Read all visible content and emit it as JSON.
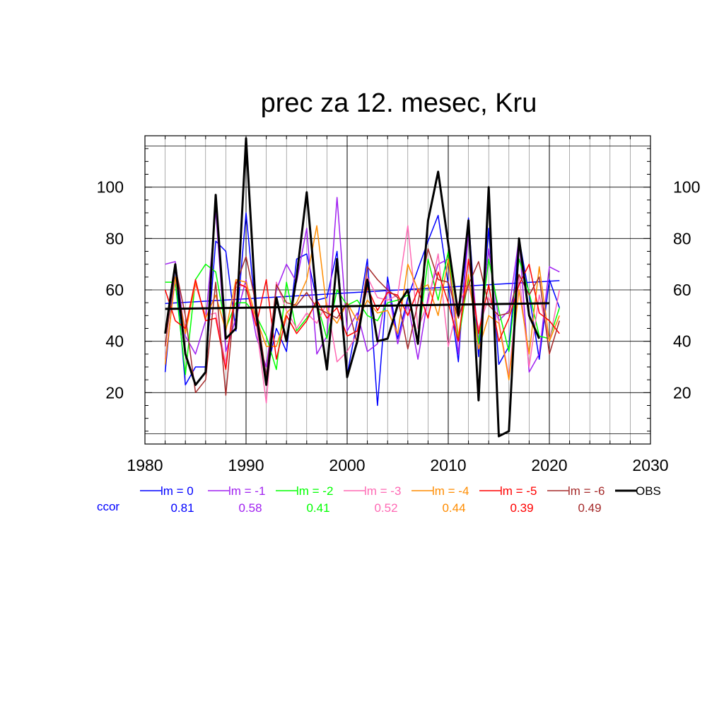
{
  "chart_data": {
    "type": "line",
    "title": "prec za 12. mesec, Kru",
    "xlabel": "",
    "ylabel": "",
    "xlim": [
      1980,
      2030
    ],
    "ylim": [
      0,
      120
    ],
    "xticks": [
      1980,
      1990,
      2000,
      2010,
      2020,
      2030
    ],
    "yticks": [
      20,
      40,
      60,
      80,
      100
    ],
    "grid": true,
    "legend_position": "bottom",
    "ccor_label": "ccor",
    "series": [
      {
        "name": "lm = 0",
        "color": "#0000ff",
        "ccor": "0.81",
        "line_width": 1.5,
        "x": [
          1982,
          1983,
          1984,
          1985,
          1986,
          1987,
          1988,
          1989,
          1990,
          1991,
          1992,
          1993,
          1994,
          1995,
          1996,
          1997,
          1998,
          1999,
          2000,
          2001,
          2002,
          2003,
          2004,
          2005,
          2006,
          2007,
          2008,
          2009,
          2010,
          2011,
          2012,
          2013,
          2014,
          2015,
          2016,
          2017,
          2018,
          2019,
          2020,
          2021
        ],
        "y": [
          28,
          69,
          23,
          30,
          30,
          79,
          75,
          44,
          90,
          49,
          27,
          45,
          36,
          72,
          74,
          56,
          57,
          75,
          27,
          48,
          72,
          15,
          65,
          41,
          57,
          68,
          79,
          89,
          62,
          32,
          88,
          34,
          84,
          31,
          38,
          80,
          58,
          33,
          64,
          53
        ],
        "trend": [
          1982,
          54.7,
          2021,
          63.6
        ]
      },
      {
        "name": "lm = -1",
        "color": "#a020f0",
        "ccor": "0.58",
        "line_width": 1.5,
        "x": [
          1982,
          1983,
          1984,
          1985,
          1986,
          1987,
          1988,
          1989,
          1990,
          1991,
          1992,
          1993,
          1994,
          1995,
          1996,
          1997,
          1998,
          1999,
          2000,
          2001,
          2002,
          2003,
          2004,
          2005,
          2006,
          2007,
          2008,
          2009,
          2010,
          2011,
          2012,
          2013,
          2014,
          2015,
          2016,
          2017,
          2018,
          2019,
          2020,
          2021
        ],
        "y": [
          70,
          71,
          42,
          35,
          48,
          91,
          36,
          49,
          64,
          42,
          30,
          60,
          70,
          63,
          84,
          35,
          42,
          96,
          44,
          51,
          36,
          39,
          62,
          39,
          55,
          33,
          57,
          70,
          72,
          35,
          82,
          40,
          76,
          48,
          52,
          80,
          28,
          35,
          69,
          67
        ]
      },
      {
        "name": "lm = -2",
        "color": "#00ff00",
        "ccor": "0.41",
        "line_width": 1.5,
        "x": [
          1982,
          1983,
          1984,
          1985,
          1986,
          1987,
          1988,
          1989,
          1990,
          1991,
          1992,
          1993,
          1994,
          1995,
          1996,
          1997,
          1998,
          1999,
          2000,
          2001,
          2002,
          2003,
          2004,
          2005,
          2006,
          2007,
          2008,
          2009,
          2010,
          2011,
          2012,
          2013,
          2014,
          2015,
          2016,
          2017,
          2018,
          2019,
          2020,
          2021
        ],
        "y": [
          63,
          63,
          27,
          64,
          70,
          67,
          45,
          55,
          55,
          50,
          42,
          29,
          63,
          44,
          49,
          55,
          41,
          60,
          54,
          56,
          50,
          48,
          55,
          56,
          58,
          40,
          72,
          56,
          75,
          40,
          65,
          39,
          72,
          52,
          36,
          72,
          59,
          42,
          41,
          53
        ]
      },
      {
        "name": "lm = -3",
        "color": "#ff69b4",
        "ccor": "0.52",
        "line_width": 1.5,
        "x": [
          1982,
          1983,
          1984,
          1985,
          1986,
          1987,
          1988,
          1989,
          1990,
          1991,
          1992,
          1993,
          1994,
          1995,
          1996,
          1997,
          1998,
          1999,
          2000,
          2001,
          2002,
          2003,
          2004,
          2005,
          2006,
          2007,
          2008,
          2009,
          2010,
          2011,
          2012,
          2013,
          2014,
          2015,
          2016,
          2017,
          2018,
          2019,
          2020,
          2021
        ],
        "y": [
          33,
          64,
          45,
          62,
          50,
          51,
          31,
          61,
          62,
          47,
          16,
          63,
          52,
          45,
          51,
          47,
          55,
          32,
          36,
          43,
          65,
          57,
          56,
          58,
          85,
          45,
          55,
          74,
          38,
          55,
          62,
          45,
          57,
          48,
          26,
          66,
          30,
          58,
          40,
          60
        ]
      },
      {
        "name": "lm = -4",
        "color": "#ff8c00",
        "ccor": "0.44",
        "line_width": 1.5,
        "x": [
          1982,
          1983,
          1984,
          1985,
          1986,
          1987,
          1988,
          1989,
          1990,
          1991,
          1992,
          1993,
          1994,
          1995,
          1996,
          1997,
          1998,
          1999,
          2000,
          2001,
          2002,
          2003,
          2004,
          2005,
          2006,
          2007,
          2008,
          2009,
          2010,
          2011,
          2012,
          2013,
          2014,
          2015,
          2016,
          2017,
          2018,
          2019,
          2020,
          2021
        ],
        "y": [
          31,
          65,
          43,
          63,
          49,
          58,
          44,
          64,
          63,
          49,
          38,
          38,
          51,
          55,
          64,
          85,
          52,
          47,
          55,
          48,
          56,
          51,
          52,
          43,
          70,
          60,
          62,
          50,
          72,
          42,
          66,
          37,
          50,
          47,
          25,
          60,
          35,
          69,
          40,
          50
        ]
      },
      {
        "name": "lm = -5",
        "color": "#ff0000",
        "ccor": "0.39",
        "line_width": 1.5,
        "x": [
          1982,
          1983,
          1984,
          1985,
          1986,
          1987,
          1988,
          1989,
          1990,
          1991,
          1992,
          1993,
          1994,
          1995,
          1996,
          1997,
          1998,
          1999,
          2000,
          2001,
          2002,
          2003,
          2004,
          2005,
          2006,
          2007,
          2008,
          2009,
          2010,
          2011,
          2012,
          2013,
          2014,
          2015,
          2016,
          2017,
          2018,
          2019,
          2020,
          2021
        ],
        "y": [
          60,
          48,
          45,
          64,
          48,
          49,
          29,
          63,
          61,
          46,
          64,
          33,
          50,
          43,
          48,
          56,
          49,
          53,
          42,
          44,
          61,
          52,
          59,
          58,
          50,
          60,
          49,
          67,
          55,
          40,
          72,
          43,
          62,
          40,
          49,
          62,
          70,
          51,
          48,
          43
        ]
      },
      {
        "name": "lm = -6",
        "color": "#a52a2a",
        "ccor": "0.49",
        "line_width": 1.5,
        "x": [
          1982,
          1983,
          1984,
          1985,
          1986,
          1987,
          1988,
          1989,
          1990,
          1991,
          1992,
          1993,
          1994,
          1995,
          1996,
          1997,
          1998,
          1999,
          2000,
          2001,
          2002,
          2003,
          2004,
          2005,
          2006,
          2007,
          2008,
          2009,
          2010,
          2011,
          2012,
          2013,
          2014,
          2015,
          2016,
          2017,
          2018,
          2019,
          2020,
          2021
        ],
        "y": [
          38,
          69,
          50,
          20,
          25,
          63,
          19,
          62,
          73,
          54,
          26,
          62,
          55,
          54,
          59,
          53,
          51,
          49,
          55,
          39,
          69,
          64,
          60,
          57,
          37,
          55,
          76,
          64,
          63,
          49,
          62,
          71,
          54,
          50,
          51,
          66,
          58,
          65,
          35,
          48
        ]
      },
      {
        "name": "OBS",
        "color": "#000000",
        "ccor": "",
        "line_width": 3,
        "x": [
          1982,
          1983,
          1984,
          1985,
          1986,
          1987,
          1988,
          1989,
          1990,
          1991,
          1992,
          1993,
          1994,
          1995,
          1996,
          1997,
          1998,
          1999,
          2000,
          2001,
          2002,
          2003,
          2004,
          2005,
          2006,
          2007,
          2008,
          2009,
          2010,
          2011,
          2012,
          2013,
          2014,
          2015,
          2016,
          2017,
          2018,
          2019
        ],
        "y": [
          43,
          70,
          35,
          23,
          28,
          97,
          41,
          45,
          119,
          51,
          23,
          57,
          40,
          65,
          98,
          55,
          29,
          72,
          26,
          40,
          64,
          40,
          41,
          54,
          60,
          39,
          87,
          106,
          78,
          50,
          87,
          17,
          100,
          3,
          5,
          80,
          50,
          41
        ],
        "trend": [
          1982,
          52.6,
          2020,
          54.8
        ]
      }
    ]
  }
}
